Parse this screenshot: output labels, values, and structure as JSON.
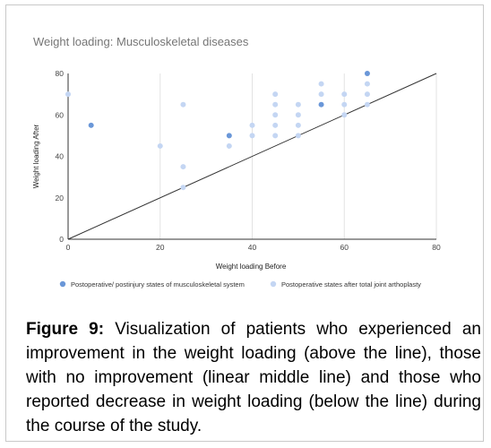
{
  "chart_data": {
    "type": "scatter",
    "title": "Weight loading: Musculoskeletal diseases",
    "xlabel": "Weight loading Before",
    "ylabel": "Weight loading After",
    "xlim": [
      0,
      80
    ],
    "ylim": [
      0,
      80
    ],
    "x_ticks": [
      0,
      20,
      40,
      60,
      80
    ],
    "y_ticks": [
      0,
      20,
      40,
      60,
      80
    ],
    "grid": "vertical",
    "legend_position": "bottom",
    "reference_line": {
      "from": [
        0,
        0
      ],
      "to": [
        80,
        80
      ]
    },
    "series": [
      {
        "name": "Postoperative/ postinjury states of musculoskeletal system",
        "color": "#6a97d8",
        "points": [
          {
            "x": 5,
            "y": 55
          },
          {
            "x": 35,
            "y": 50
          },
          {
            "x": 55,
            "y": 65
          },
          {
            "x": 65,
            "y": 80
          }
        ]
      },
      {
        "name": "Postoperative states after total joint arthoplasty",
        "color": "#c4d6f3",
        "points": [
          {
            "x": 0,
            "y": 70
          },
          {
            "x": 20,
            "y": 45
          },
          {
            "x": 25,
            "y": 65
          },
          {
            "x": 25,
            "y": 35
          },
          {
            "x": 25,
            "y": 25
          },
          {
            "x": 35,
            "y": 45
          },
          {
            "x": 40,
            "y": 55
          },
          {
            "x": 40,
            "y": 50
          },
          {
            "x": 45,
            "y": 70
          },
          {
            "x": 45,
            "y": 65
          },
          {
            "x": 45,
            "y": 60
          },
          {
            "x": 45,
            "y": 55
          },
          {
            "x": 45,
            "y": 50
          },
          {
            "x": 50,
            "y": 65
          },
          {
            "x": 50,
            "y": 60
          },
          {
            "x": 50,
            "y": 55
          },
          {
            "x": 50,
            "y": 50
          },
          {
            "x": 55,
            "y": 75
          },
          {
            "x": 55,
            "y": 70
          },
          {
            "x": 60,
            "y": 70
          },
          {
            "x": 60,
            "y": 65
          },
          {
            "x": 60,
            "y": 60
          },
          {
            "x": 65,
            "y": 75
          },
          {
            "x": 65,
            "y": 70
          },
          {
            "x": 65,
            "y": 65
          }
        ]
      }
    ]
  },
  "caption": {
    "label": "Figure 9:",
    "text": " Visualization of patients who experienced an improvement in the weight loading (above the line), those with no improvement (linear middle line) and those who reported decrease in weight loading (below the line) during the course of the study."
  }
}
